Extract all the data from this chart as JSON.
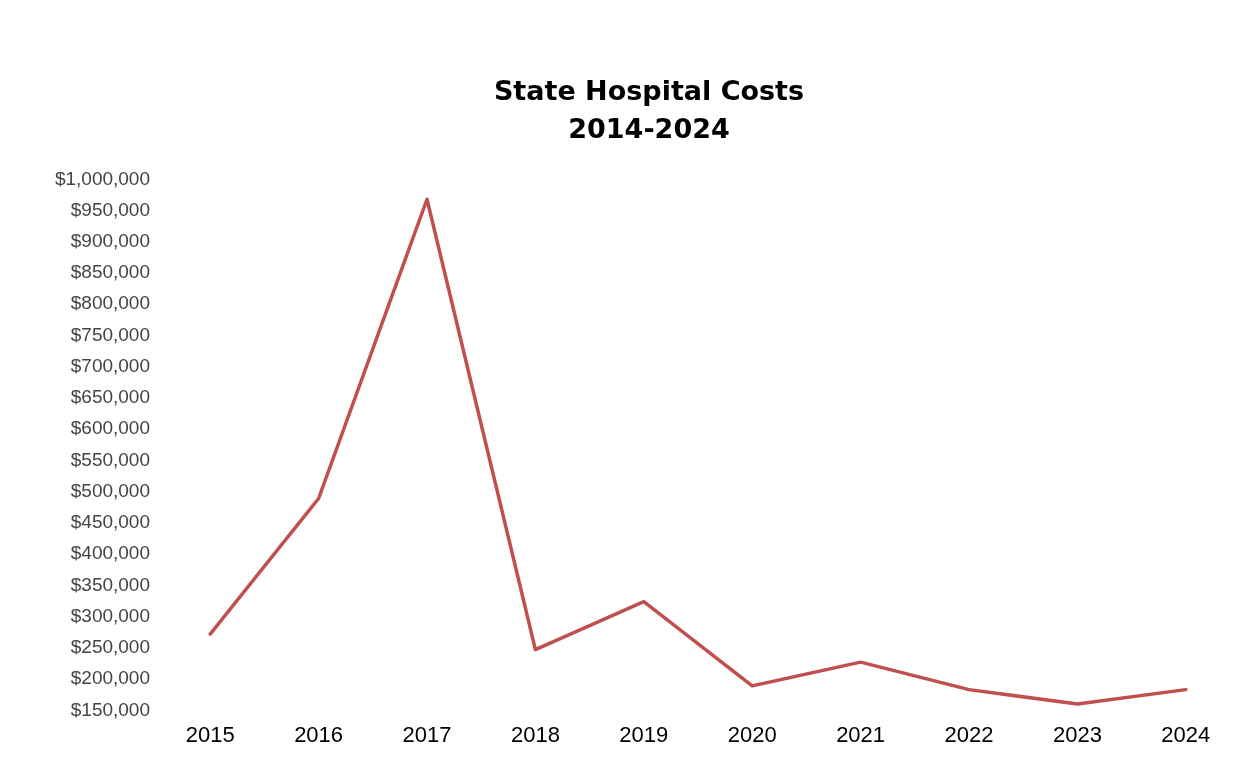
{
  "chart_data": {
    "type": "line",
    "title": "State Hospital Costs\n2014-2024",
    "categories": [
      "2015",
      "2016",
      "2017",
      "2018",
      "2019",
      "2020",
      "2021",
      "2022",
      "2023",
      "2024"
    ],
    "series": [
      {
        "color": "#c0504d",
        "values": [
          270000,
          487000,
          966000,
          245000,
          322000,
          187000,
          225000,
          181000,
          158000,
          181000
        ]
      }
    ],
    "ylim": [
      150000,
      1000000
    ],
    "yticks": [
      {
        "value": 150000,
        "label": "$150,000"
      },
      {
        "value": 200000,
        "label": "$200,000"
      },
      {
        "value": 250000,
        "label": "$250,000"
      },
      {
        "value": 300000,
        "label": "$300,000"
      },
      {
        "value": 350000,
        "label": "$350,000"
      },
      {
        "value": 400000,
        "label": "$400,000"
      },
      {
        "value": 450000,
        "label": "$450,000"
      },
      {
        "value": 500000,
        "label": "$500,000"
      },
      {
        "value": 550000,
        "label": "$550,000"
      },
      {
        "value": 600000,
        "label": "$600,000"
      },
      {
        "value": 650000,
        "label": "$650,000"
      },
      {
        "value": 700000,
        "label": "$700,000"
      },
      {
        "value": 750000,
        "label": "$750,000"
      },
      {
        "value": 800000,
        "label": "$800,000"
      },
      {
        "value": 850000,
        "label": "$850,000"
      },
      {
        "value": 900000,
        "label": "$900,000"
      },
      {
        "value": 950000,
        "label": "$950,000"
      },
      {
        "value": 1000000,
        "label": "$1,000,000"
      }
    ],
    "grid": false,
    "marker": "none",
    "line_style": "solid"
  }
}
